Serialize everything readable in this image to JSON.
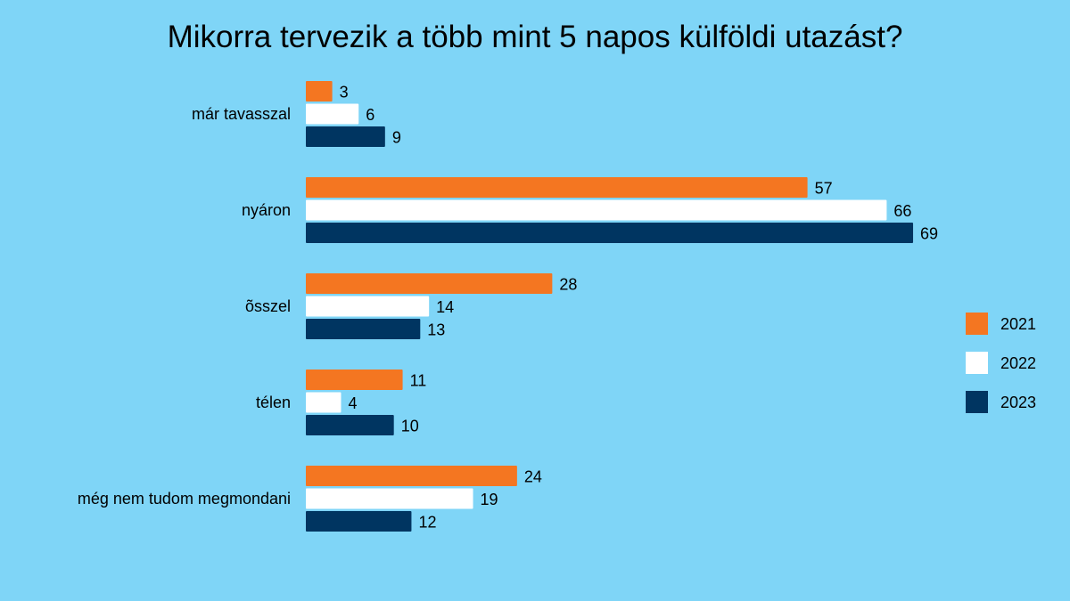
{
  "chart_data": {
    "type": "bar",
    "orientation": "horizontal",
    "title": "Mikorra tervezik a több mint 5 napos külföldi utazást?",
    "xlabel": "",
    "ylabel": "",
    "xlim": [
      0,
      85
    ],
    "grid": false,
    "legend_position": "right",
    "categories": [
      "már tavasszal",
      "nyáron",
      "õsszel",
      "télen",
      "még nem tudom megmondani"
    ],
    "series": [
      {
        "name": "2021",
        "color": "#f47621",
        "values": [
          3,
          57,
          28,
          11,
          24
        ]
      },
      {
        "name": "2022",
        "color": "#ffffff",
        "values": [
          6,
          66,
          14,
          4,
          19
        ]
      },
      {
        "name": "2023",
        "color": "#003561",
        "values": [
          9,
          69,
          13,
          10,
          12
        ]
      }
    ]
  }
}
